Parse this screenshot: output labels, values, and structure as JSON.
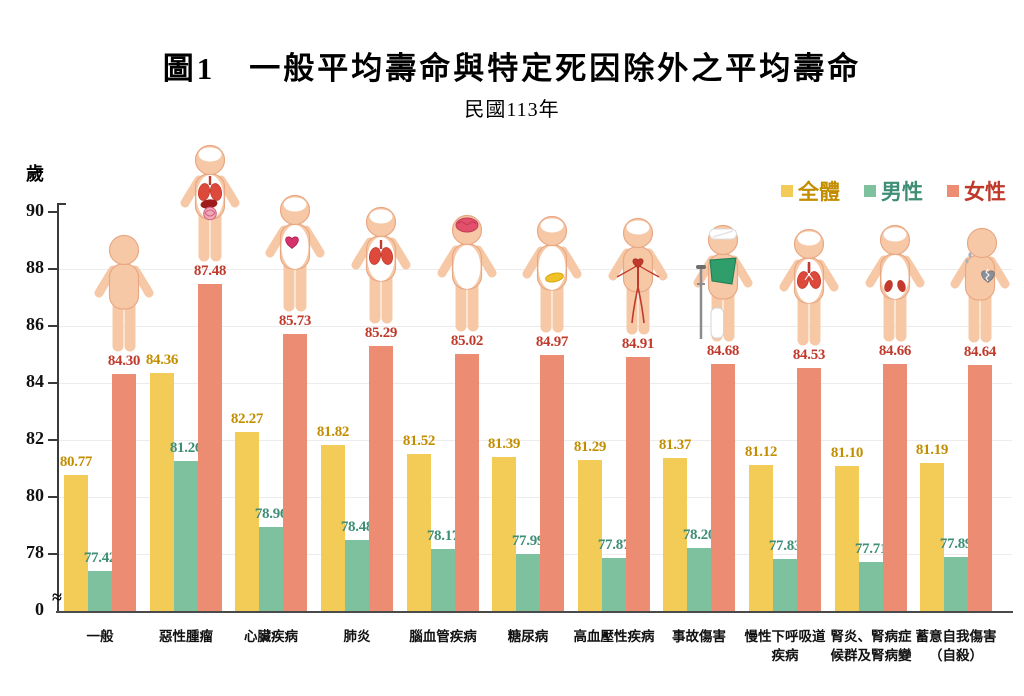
{
  "chart_data": {
    "type": "bar",
    "title": "圖1　一般平均壽命與特定死因除外之平均壽命",
    "subtitle": "民國113年",
    "y_axis_unit_label": "歲",
    "y_ticks": [
      90,
      88,
      86,
      84,
      82,
      80,
      78
    ],
    "y_axis_break": true,
    "y_axis_break_symbol": "≈",
    "y_axis_zero_label": "0",
    "ylim": [
      0,
      90
    ],
    "y_visible_range": [
      77,
      90
    ],
    "grid": true,
    "legend_position": "top-right",
    "categories": [
      {
        "label": "一般",
        "lines": [
          "一般"
        ],
        "icon": "person-plain-icon"
      },
      {
        "label": "惡性腫瘤",
        "lines": [
          "惡性腫瘤"
        ],
        "icon": "person-cancer-organs-icon"
      },
      {
        "label": "心臟疾病",
        "lines": [
          "心臟疾病"
        ],
        "icon": "person-heart-icon"
      },
      {
        "label": "肺炎",
        "lines": [
          "肺炎"
        ],
        "icon": "person-lungs-icon"
      },
      {
        "label": "腦血管疾病",
        "lines": [
          "腦血管疾病"
        ],
        "icon": "person-brain-icon"
      },
      {
        "label": "糖尿病",
        "lines": [
          "糖尿病"
        ],
        "icon": "person-pancreas-icon"
      },
      {
        "label": "高血壓性疾病",
        "lines": [
          "高血壓性疾病"
        ],
        "icon": "person-blood-vessels-icon"
      },
      {
        "label": "事故傷害",
        "lines": [
          "事故傷害"
        ],
        "icon": "person-injury-icon"
      },
      {
        "label": "慢性下呼吸道疾病",
        "lines": [
          "慢性下呼吸道",
          "疾病"
        ],
        "icon": "person-airway-lungs-icon"
      },
      {
        "label": "腎炎、腎病症候群及腎病變",
        "lines": [
          "腎炎、腎病症",
          "候群及腎病變"
        ],
        "icon": "person-kidneys-icon"
      },
      {
        "label": "蓄意自我傷害（自殺）",
        "lines": [
          "蓄意自我傷害",
          "（自殺）"
        ],
        "icon": "person-broken-heart-icon"
      }
    ],
    "series": [
      {
        "name": "全體",
        "key": "total",
        "bar_color": "#F3CC58",
        "label_color": "#C28E00",
        "values": [
          80.77,
          84.36,
          82.27,
          81.82,
          81.52,
          81.39,
          81.29,
          81.37,
          81.12,
          81.1,
          81.19
        ]
      },
      {
        "name": "男性",
        "key": "male",
        "bar_color": "#7DC19E",
        "label_color": "#3E8E75",
        "values": [
          77.42,
          81.26,
          78.96,
          78.48,
          78.17,
          77.99,
          77.87,
          78.2,
          77.83,
          77.71,
          77.89
        ]
      },
      {
        "name": "女性",
        "key": "female",
        "bar_color": "#EC8D73",
        "label_color": "#C0392B",
        "values": [
          84.3,
          87.48,
          85.73,
          85.29,
          85.02,
          84.97,
          84.91,
          84.68,
          84.53,
          84.66,
          84.64
        ]
      }
    ],
    "figure_colors": {
      "skin": "#F6C8A6",
      "skin_outline": "#E9A884"
    }
  }
}
